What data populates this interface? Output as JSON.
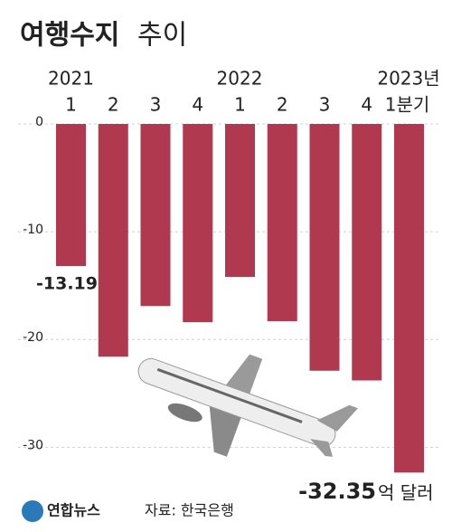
{
  "chart_data": {
    "type": "bar",
    "title": "여행수지",
    "title_light": "추이",
    "year_labels": [
      "2021",
      "2022",
      "2023년"
    ],
    "categories": [
      "1",
      "2",
      "3",
      "4",
      "1",
      "2",
      "3",
      "4",
      "1분기"
    ],
    "values": [
      -13.19,
      -21.6,
      -16.9,
      -18.4,
      -14.2,
      -18.3,
      -22.9,
      -23.8,
      -32.35
    ],
    "value_labels": [
      "-13.19",
      null,
      null,
      null,
      null,
      null,
      null,
      null,
      "-32.35"
    ],
    "unit": "억 달러",
    "color": "#b0384f",
    "ylim": [
      -33.5,
      0
    ],
    "yticks": [
      0,
      -10,
      -20,
      -30
    ],
    "grid": true,
    "logo": "연합뉴스",
    "source": "자료: 한국은행"
  }
}
